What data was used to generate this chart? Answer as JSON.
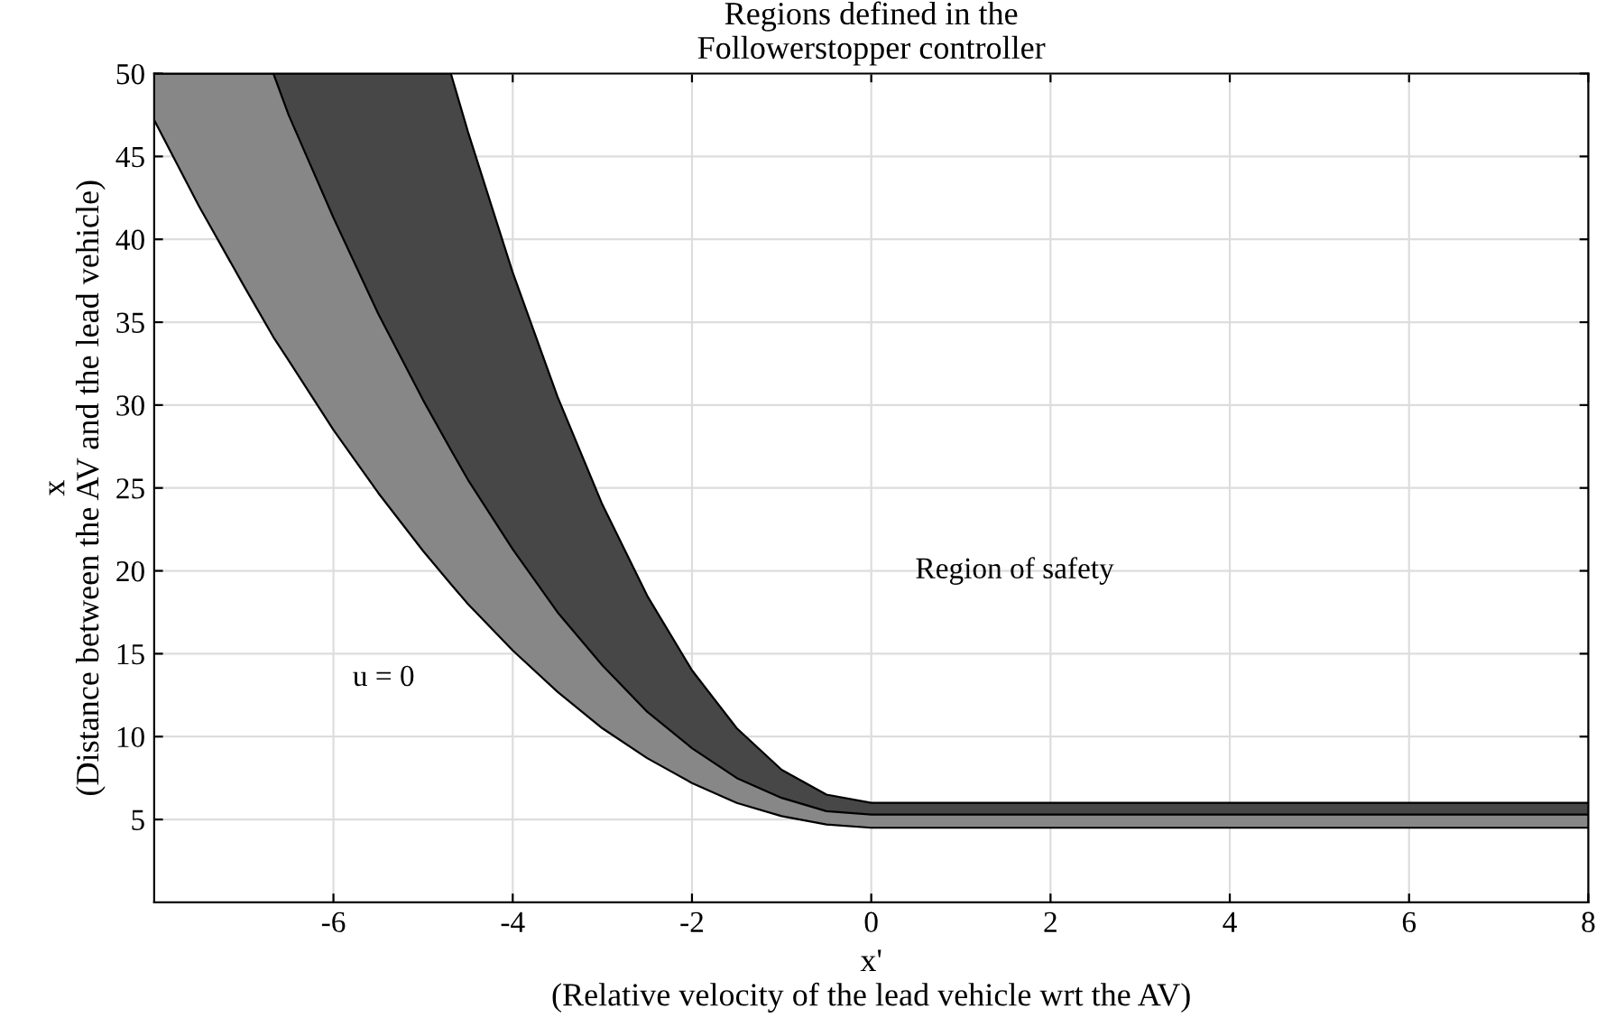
{
  "chart_data": {
    "type": "area",
    "stacked": true,
    "title": "Regions defined in the\nFollowerstopper controller",
    "xlabel": "x'\n(Relative velocity of the lead vehicle wrt the AV)",
    "ylabel": "x\n(Distance between the AV and the lead vehicle)",
    "x": [
      -8,
      -7.5,
      -7,
      -6.67,
      -6.5,
      -6,
      -5.5,
      -5,
      -4.69,
      -4.5,
      -4,
      -3.5,
      -3,
      -2.5,
      -2,
      -1.5,
      -1,
      -0.5,
      0,
      8
    ],
    "series": [
      {
        "color": "#ffffff",
        "values": [
          47.2,
          42.0,
          37.2,
          34.1,
          32.7,
          28.5,
          24.7,
          21.2,
          19.2,
          18.0,
          15.2,
          12.7,
          10.5,
          8.7,
          7.2,
          6.0,
          5.2,
          4.7,
          4.5,
          4.5
        ]
      },
      {
        "color": "#878787",
        "values": [
          2.8,
          8.0,
          12.8,
          15.9,
          14.8,
          12.8,
          10.8,
          9.1,
          8.1,
          7.5,
          6.1,
          4.8,
          3.8,
          2.8,
          2.1,
          1.5,
          1.1,
          0.8,
          0.8,
          0.8
        ]
      },
      {
        "color": "#474747",
        "values": [
          0,
          0,
          0,
          0,
          2.5,
          8.7,
          14.5,
          19.7,
          22.7,
          21,
          16.7,
          13,
          9.7,
          7,
          4.7,
          3,
          1.7,
          1,
          0.7,
          0.7
        ]
      }
    ],
    "annotations": [
      "u = 0",
      "Region of safety"
    ],
    "xlim": [
      -8,
      8
    ],
    "xticks": [
      -6,
      -4,
      -2,
      0,
      2,
      4,
      6,
      8
    ],
    "ylim": [
      0,
      50
    ],
    "yticks": [
      5,
      10,
      15,
      20,
      25,
      30,
      35,
      40,
      45,
      50
    ],
    "grid": true
  }
}
